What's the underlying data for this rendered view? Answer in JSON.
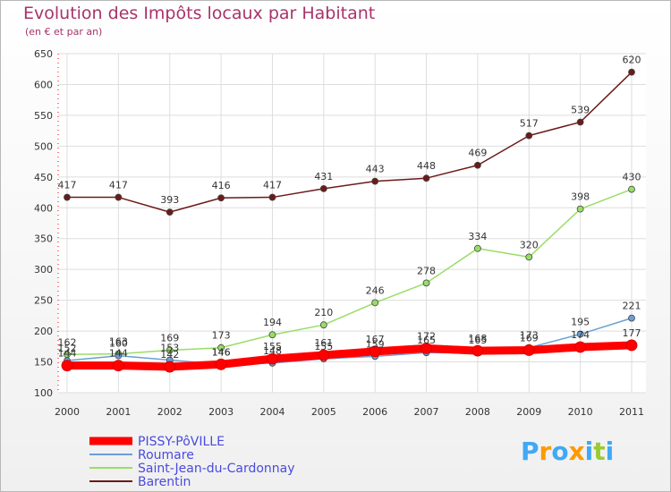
{
  "chart_data": {
    "type": "line",
    "title": "Evolution des Impôts locaux par Habitant",
    "subtitle": "(en € et par an)",
    "x": [
      "2000",
      "2001",
      "2002",
      "2003",
      "2004",
      "2005",
      "2006",
      "2007",
      "2008",
      "2009",
      "2010",
      "2011"
    ],
    "ylim": [
      100,
      650
    ],
    "yticks": [
      100,
      150,
      200,
      250,
      300,
      350,
      400,
      450,
      500,
      550,
      600,
      650
    ],
    "grid": true,
    "legend_position": "bottom-left",
    "series": [
      {
        "name": "PISSY-PôVILLE",
        "color": "#ff0000",
        "values": [
          144,
          144,
          142,
          146,
          155,
          161,
          167,
          172,
          168,
          169,
          174,
          177
        ]
      },
      {
        "name": "Roumare",
        "color": "#6a9fd4",
        "values": [
          152,
          160,
          153,
          146,
          148,
          155,
          159,
          165,
          165,
          173,
          195,
          221
        ]
      },
      {
        "name": "Saint-Jean-du-Cardonnay",
        "color": "#99dd66",
        "values": [
          162,
          163,
          169,
          173,
          194,
          210,
          246,
          278,
          334,
          320,
          398,
          430
        ]
      },
      {
        "name": "Barentin",
        "color": "#6b1a1a",
        "values": [
          417,
          417,
          393,
          416,
          417,
          431,
          443,
          448,
          469,
          517,
          539,
          620
        ]
      }
    ]
  },
  "logo": {
    "letters": [
      "P",
      "r",
      "o",
      "x",
      "i",
      "t",
      "i"
    ],
    "colors": [
      "#3fa9f5",
      "#ff9900",
      "#3fa9f5",
      "#ff9900",
      "#3fa9f5",
      "#99cc33",
      "#3fa9f5"
    ]
  }
}
